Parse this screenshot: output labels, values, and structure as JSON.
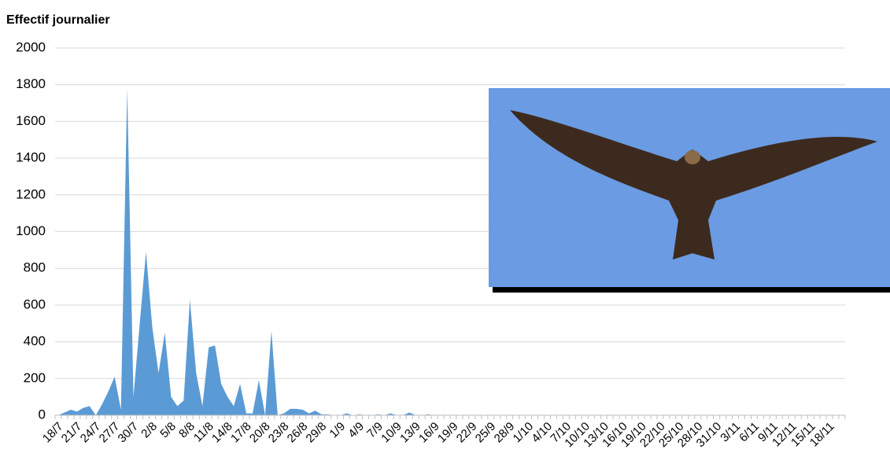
{
  "chart_data": {
    "type": "area",
    "title": "Effectif journalier",
    "categories": [
      "18/7",
      null,
      null,
      "21/7",
      null,
      null,
      "24/7",
      null,
      null,
      "27/7",
      null,
      null,
      "30/7",
      null,
      null,
      "2/8",
      null,
      null,
      "5/8",
      null,
      null,
      "8/8",
      null,
      null,
      "11/8",
      null,
      null,
      "14/8",
      null,
      null,
      "17/8",
      null,
      null,
      "20/8",
      null,
      null,
      "23/8",
      null,
      null,
      "26/8",
      null,
      null,
      "29/8",
      null,
      null,
      "1/9",
      null,
      null,
      "4/9",
      null,
      null,
      "7/9",
      null,
      null,
      "10/9",
      null,
      null,
      "13/9",
      null,
      null,
      "16/9",
      null,
      null,
      "19/9",
      null,
      null,
      "22/9",
      null,
      null,
      "25/9",
      null,
      null,
      "28/9",
      null,
      null,
      "1/10",
      null,
      null,
      "4/10",
      null,
      null,
      "7/10",
      null,
      null,
      "10/10",
      null,
      null,
      "13/10",
      null,
      null,
      "16/10",
      null,
      null,
      "19/10",
      null,
      null,
      "22/10",
      null,
      null,
      "25/10",
      null,
      null,
      "28/10",
      null,
      null,
      "31/10",
      null,
      null,
      "3/11",
      null,
      null,
      "6/11",
      null,
      null,
      "9/11",
      null,
      null,
      "12/11",
      null,
      null,
      "15/11",
      null,
      null,
      "18/11",
      null,
      null
    ],
    "values": [
      0,
      15,
      30,
      20,
      40,
      50,
      0,
      60,
      130,
      210,
      30,
      1780,
      100,
      500,
      890,
      480,
      230,
      450,
      100,
      50,
      80,
      630,
      230,
      50,
      370,
      380,
      170,
      100,
      50,
      170,
      10,
      10,
      190,
      0,
      460,
      0,
      10,
      35,
      35,
      30,
      10,
      25,
      5,
      5,
      0,
      0,
      10,
      0,
      5,
      0,
      0,
      5,
      0,
      10,
      0,
      0,
      15,
      0,
      0,
      5,
      0,
      0,
      0,
      0,
      0,
      0,
      0,
      0,
      0,
      0,
      0,
      0,
      0,
      0,
      0,
      0,
      0,
      0,
      0,
      0,
      0,
      0,
      0,
      0,
      0,
      0,
      0,
      0,
      0,
      0,
      0,
      0,
      0,
      0,
      0,
      0,
      0,
      0,
      0,
      0,
      0,
      0,
      0,
      0,
      0,
      0,
      0,
      0,
      0,
      0,
      0,
      0,
      0,
      0,
      0,
      0,
      0,
      0,
      0,
      0,
      0,
      0,
      0,
      0,
      0,
      0
    ],
    "color": "#5b9bd5",
    "ylim": [
      0,
      2000
    ],
    "yticks": [
      0,
      200,
      400,
      600,
      800,
      1000,
      1200,
      1400,
      1600,
      1800,
      2000
    ],
    "grid": true
  }
}
